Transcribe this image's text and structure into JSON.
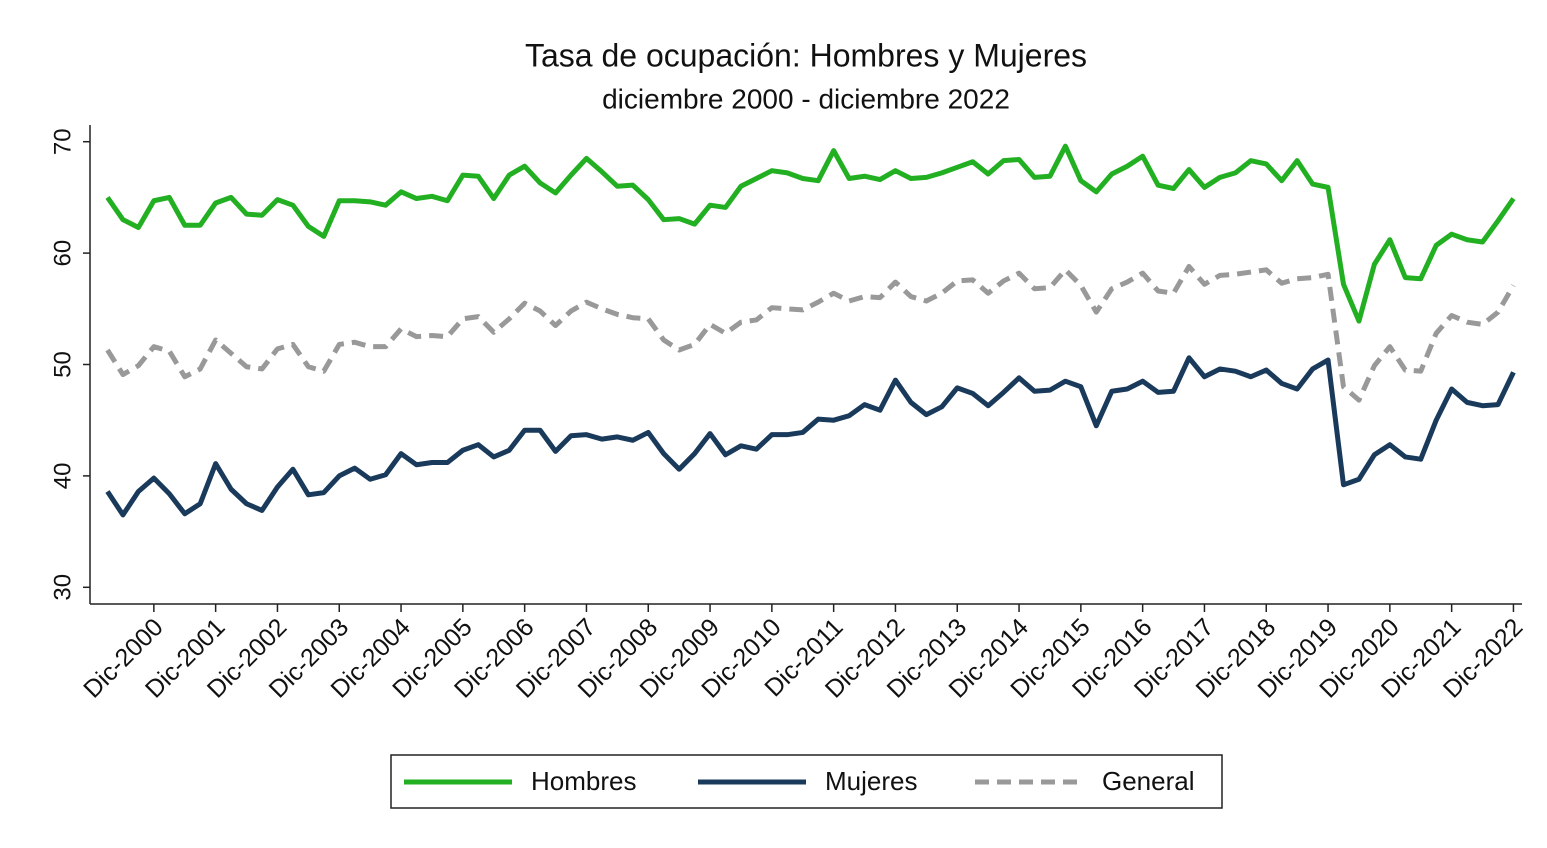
{
  "chart_data": {
    "type": "line",
    "title": "Tasa de ocupación: Hombres y Mujeres",
    "subtitle": "diciembre 2000 - diciembre 2022",
    "categories": [
      null,
      null,
      null,
      "Dic-2000",
      null,
      null,
      null,
      "Dic-2001",
      null,
      null,
      null,
      "Dic-2002",
      null,
      null,
      null,
      "Dic-2003",
      null,
      null,
      null,
      "Dic-2004",
      null,
      null,
      null,
      "Dic-2005",
      null,
      null,
      null,
      "Dic-2006",
      null,
      null,
      null,
      "Dic-2007",
      null,
      null,
      null,
      "Dic-2008",
      null,
      null,
      null,
      "Dic-2009",
      null,
      null,
      null,
      "Dic-2010",
      null,
      null,
      null,
      "Dic-2011",
      null,
      null,
      null,
      "Dic-2012",
      null,
      null,
      null,
      "Dic-2013",
      null,
      null,
      null,
      "Dic-2014",
      null,
      null,
      null,
      "Dic-2015",
      null,
      null,
      null,
      "Dic-2016",
      null,
      null,
      null,
      "Dic-2017",
      null,
      null,
      null,
      "Dic-2018",
      null,
      null,
      null,
      "Dic-2019",
      null,
      null,
      null,
      "Dic-2020",
      null,
      null,
      null,
      "Dic-2021",
      null,
      null,
      null,
      "Dic-2022"
    ],
    "series": [
      {
        "name": "Hombres",
        "color": "#22b022",
        "style": "solid",
        "values": [
          65,
          63,
          62.3,
          64.7,
          65,
          62.5,
          62.5,
          64.5,
          65,
          63.5,
          63.4,
          64.8,
          64.3,
          62.4,
          61.5,
          64.7,
          64.7,
          64.6,
          64.3,
          65.5,
          64.9,
          65.1,
          64.7,
          67,
          66.9,
          64.9,
          67,
          67.8,
          66.3,
          65.4,
          67,
          68.5,
          67.3,
          66,
          66.1,
          64.8,
          63,
          63.1,
          62.6,
          64.3,
          64.1,
          66,
          66.7,
          67.4,
          67.2,
          66.7,
          66.5,
          69.2,
          66.7,
          66.9,
          66.6,
          67.4,
          66.7,
          66.8,
          67.2,
          67.7,
          68.2,
          67.1,
          68.3,
          68.4,
          66.8,
          66.9,
          69.6,
          66.5,
          65.5,
          67.1,
          67.8,
          68.7,
          66.1,
          65.8,
          67.5,
          65.9,
          66.8,
          67.2,
          68.3,
          68,
          66.5,
          68.3,
          66.2,
          65.9,
          57.2,
          53.9,
          59,
          61.2,
          57.8,
          57.7,
          60.7,
          61.7,
          61.2,
          61,
          62.9,
          64.9
        ]
      },
      {
        "name": "Mujeres",
        "color": "#1a3a5c",
        "style": "solid",
        "values": [
          38.6,
          36.5,
          38.6,
          39.8,
          38.4,
          36.6,
          37.5,
          41.1,
          38.8,
          37.5,
          36.9,
          39,
          40.6,
          38.3,
          38.5,
          40,
          40.7,
          39.7,
          40.1,
          42,
          41,
          41.2,
          41.2,
          42.3,
          42.8,
          41.7,
          42.3,
          44.1,
          44.1,
          42.2,
          43.6,
          43.7,
          43.3,
          43.5,
          43.2,
          43.9,
          42,
          40.6,
          42,
          43.8,
          41.9,
          42.7,
          42.4,
          43.7,
          43.7,
          43.9,
          45.1,
          45,
          45.4,
          46.4,
          45.9,
          48.6,
          46.6,
          45.5,
          46.2,
          47.9,
          47.4,
          46.3,
          47.5,
          48.8,
          47.6,
          47.7,
          48.5,
          48,
          44.5,
          47.6,
          47.8,
          48.5,
          47.5,
          47.6,
          50.6,
          48.9,
          49.6,
          49.4,
          48.9,
          49.5,
          48.3,
          47.8,
          49.6,
          50.4,
          39.2,
          39.7,
          41.9,
          42.8,
          41.7,
          41.5,
          45,
          47.8,
          46.6,
          46.3,
          46.4,
          49.3
        ]
      },
      {
        "name": "General",
        "color": "#999999",
        "style": "dashed",
        "values": [
          51.3,
          49.1,
          49.9,
          51.6,
          51.2,
          48.9,
          49.6,
          52.2,
          51,
          49.8,
          49.6,
          51.4,
          51.8,
          49.8,
          49.4,
          51.8,
          52,
          51.6,
          51.6,
          53.2,
          52.5,
          52.6,
          52.5,
          54.1,
          54.3,
          52.9,
          54.1,
          55.5,
          54.8,
          53.5,
          54.8,
          55.6,
          55,
          54.5,
          54.2,
          54.1,
          52.2,
          51.3,
          51.8,
          53.6,
          52.8,
          53.8,
          54,
          55.1,
          55,
          54.9,
          55.6,
          56.4,
          55.7,
          56.1,
          56,
          57.4,
          56.1,
          55.7,
          56.4,
          57.5,
          57.6,
          56.4,
          57.5,
          58.2,
          56.8,
          56.9,
          58.5,
          57.1,
          54.7,
          56.8,
          57.4,
          58.2,
          56.6,
          56.4,
          58.8,
          57.2,
          58,
          58.1,
          58.3,
          58.5,
          57.3,
          57.7,
          57.8,
          58.1,
          48,
          46.8,
          49.9,
          51.6,
          49.5,
          49.4,
          52.8,
          54.4,
          53.8,
          53.6,
          54.7,
          57.1
        ]
      }
    ],
    "ylim": [
      28.5,
      71.5
    ],
    "yticks": [
      30,
      40,
      50,
      60,
      70
    ],
    "grid": false,
    "legend": "bottom"
  }
}
